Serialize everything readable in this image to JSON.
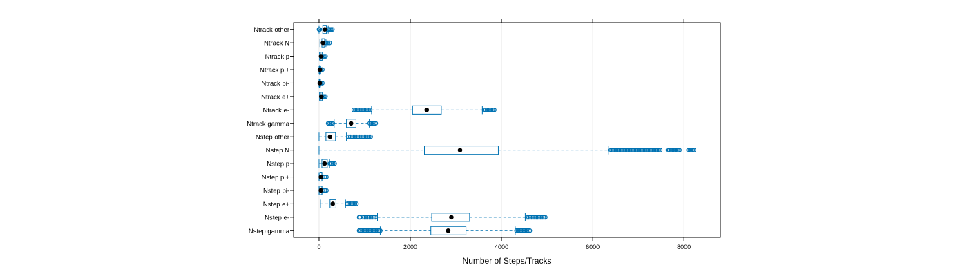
{
  "chart_data": {
    "type": "boxplot",
    "xlabel": "Number of Steps/Tracks",
    "xlim": [
      -560,
      8800
    ],
    "xticks": [
      0,
      2000,
      4000,
      6000,
      8000
    ],
    "xtick_labels": [
      "0",
      "2000",
      "4000",
      "6000",
      "8000"
    ],
    "grid": "vertical",
    "colors": {
      "box": "#0072B2",
      "median_dot": "#000000",
      "grid": "#e8e8e8",
      "frame": "#000000"
    },
    "categories": [
      "Ntrack other",
      "Ntrack N",
      "Ntrack p",
      "Ntrack pi+",
      "Ntrack pi-",
      "Ntrack e+",
      "Ntrack e-",
      "Ntrack gamma",
      "Nstep other",
      "Nstep N",
      "Nstep p",
      "Nstep pi+",
      "Nstep pi-",
      "Nstep e+",
      "Nstep e-",
      "Nstep gamma"
    ],
    "boxes": [
      {
        "name": "Ntrack other",
        "whisker_low": 0,
        "q1": 80,
        "median": 125,
        "q3": 160,
        "whisker_high": 200,
        "outliers": [
          [
            0,
            15
          ],
          [
            205,
            290
          ]
        ]
      },
      {
        "name": "Ntrack N",
        "whisker_low": 20,
        "q1": 60,
        "median": 85,
        "q3": 120,
        "whisker_high": 150,
        "outliers": [
          [
            160,
            230
          ]
        ]
      },
      {
        "name": "Ntrack p",
        "whisker_low": 10,
        "q1": 30,
        "median": 45,
        "q3": 65,
        "whisker_high": 80,
        "outliers": [
          [
            85,
            140
          ]
        ]
      },
      {
        "name": "Ntrack pi+",
        "whisker_low": 0,
        "q1": 10,
        "median": 18,
        "q3": 25,
        "whisker_high": 35,
        "outliers": [
          [
            40,
            70
          ]
        ]
      },
      {
        "name": "Ntrack pi-",
        "whisker_low": 0,
        "q1": 8,
        "median": 15,
        "q3": 22,
        "whisker_high": 30,
        "outliers": [
          [
            35,
            70
          ]
        ]
      },
      {
        "name": "Ntrack e+",
        "whisker_low": 10,
        "q1": 30,
        "median": 50,
        "q3": 65,
        "whisker_high": 80,
        "outliers": [
          [
            85,
            140
          ]
        ]
      },
      {
        "name": "Ntrack e-",
        "whisker_low": 1150,
        "q1": 2050,
        "median": 2360,
        "q3": 2680,
        "whisker_high": 3580,
        "outliers": [
          [
            760,
            1120
          ],
          [
            3620,
            3840
          ]
        ]
      },
      {
        "name": "Ntrack gamma",
        "whisker_low": 330,
        "q1": 600,
        "median": 700,
        "q3": 810,
        "whisker_high": 1100,
        "outliers": [
          [
            200,
            300
          ],
          [
            1110,
            1240
          ]
        ]
      },
      {
        "name": "Nstep other",
        "whisker_low": 0,
        "q1": 150,
        "median": 240,
        "q3": 360,
        "whisker_high": 600,
        "outliers": [
          [
            650,
            1130
          ]
        ]
      },
      {
        "name": "Nstep N",
        "whisker_low": 0,
        "q1": 2310,
        "median": 3090,
        "q3": 3930,
        "whisker_high": 6350,
        "outliers": [
          [
            6380,
            7480
          ],
          [
            7650,
            7900
          ],
          [
            8100,
            8220
          ]
        ]
      },
      {
        "name": "Nstep p",
        "whisker_low": 0,
        "q1": 60,
        "median": 120,
        "q3": 180,
        "whisker_high": 230,
        "outliers": [
          [
            240,
            340
          ]
        ]
      },
      {
        "name": "Nstep pi+",
        "whisker_low": 0,
        "q1": 20,
        "median": 40,
        "q3": 60,
        "whisker_high": 80,
        "outliers": [
          [
            90,
            160
          ]
        ]
      },
      {
        "name": "Nstep pi-",
        "whisker_low": 0,
        "q1": 20,
        "median": 40,
        "q3": 60,
        "whisker_high": 80,
        "outliers": [
          [
            90,
            160
          ]
        ]
      },
      {
        "name": "Nstep e+",
        "whisker_low": 30,
        "q1": 240,
        "median": 300,
        "q3": 370,
        "whisker_high": 580,
        "outliers": [
          [
            620,
            820
          ]
        ]
      },
      {
        "name": "Nstep e-",
        "whisker_low": 1280,
        "q1": 2470,
        "median": 2900,
        "q3": 3300,
        "whisker_high": 4520,
        "outliers": [
          [
            880,
            900
          ],
          [
            960,
            1240
          ],
          [
            4560,
            4960
          ]
        ]
      },
      {
        "name": "Nstep gamma",
        "whisker_low": 1340,
        "q1": 2450,
        "median": 2830,
        "q3": 3220,
        "whisker_high": 4300,
        "outliers": [
          [
            880,
            1340
          ],
          [
            4330,
            4620
          ]
        ]
      }
    ]
  }
}
